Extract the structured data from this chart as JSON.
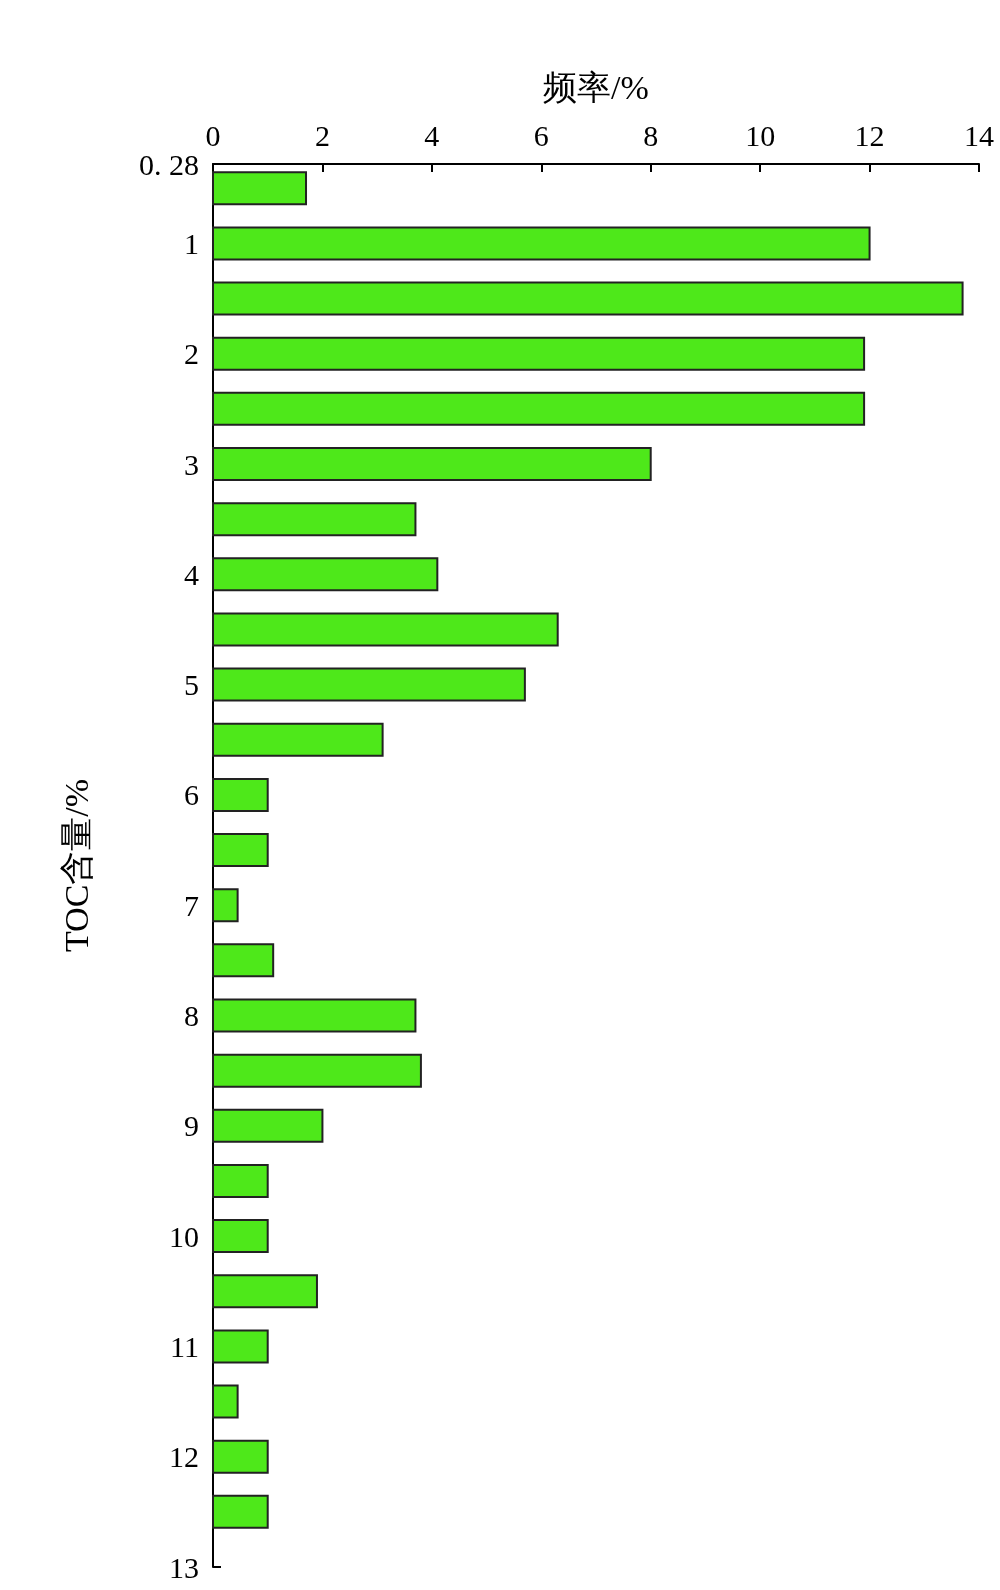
{
  "chart_data": {
    "type": "bar",
    "orientation": "horizontal",
    "xlabel": "频率/%",
    "ylabel": "TOC含量/%",
    "x": [
      0.5,
      1,
      1.5,
      2,
      2.5,
      3,
      3.5,
      4,
      4.5,
      5,
      5.5,
      6,
      6.5,
      7,
      7.5,
      8,
      8.5,
      9,
      9.5,
      10,
      10.5,
      11,
      11.5,
      12,
      12.5
    ],
    "values": [
      1.7,
      12,
      13.7,
      11.9,
      11.9,
      8,
      3.7,
      4.1,
      6.3,
      5.7,
      3.1,
      1,
      1,
      0.45,
      1.1,
      3.7,
      3.8,
      2,
      1,
      1,
      1.9,
      1,
      0.45,
      1,
      1
    ],
    "color": "#4ee81a",
    "xlim": [
      0,
      14
    ],
    "xticks": [
      0,
      2,
      4,
      6,
      8,
      10,
      12,
      14
    ],
    "ylim": [
      13,
      0.28
    ],
    "yticks": [
      {
        "value": 0.28,
        "label": "0. 28"
      },
      1,
      2,
      3,
      4,
      5,
      6,
      7,
      8,
      9,
      10,
      11,
      12,
      13
    ]
  }
}
